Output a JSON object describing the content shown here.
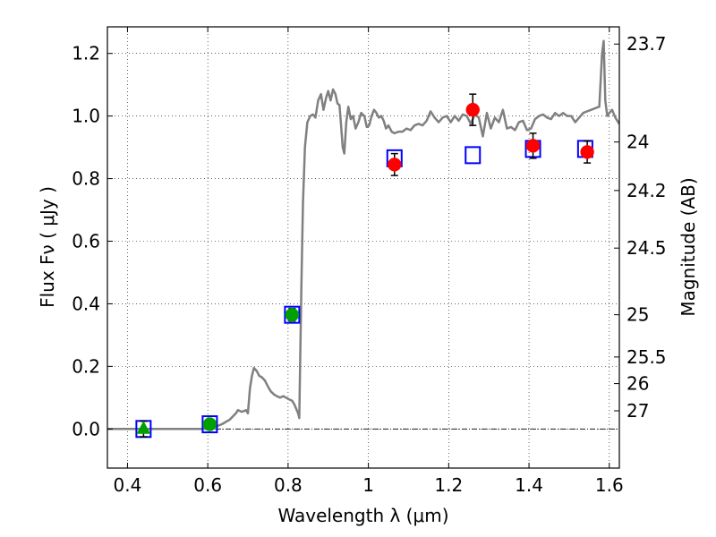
{
  "chart_data": {
    "type": "scatter",
    "xlabel": "Wavelength  λ (μm)",
    "ylabel": "Flux  Fν  ( μJy )",
    "ylabel_right": "Magnitude (AB)",
    "xlim": [
      0.35,
      1.625
    ],
    "ylim": [
      -0.125,
      1.285
    ],
    "grid": true,
    "x_ticks": [
      {
        "value": 0.4,
        "label": "0.4"
      },
      {
        "value": 0.6,
        "label": "0.6"
      },
      {
        "value": 0.8,
        "label": "0.8"
      },
      {
        "value": 1.0,
        "label": "1"
      },
      {
        "value": 1.2,
        "label": "1.2"
      },
      {
        "value": 1.4,
        "label": "1.4"
      },
      {
        "value": 1.6,
        "label": "1.6"
      }
    ],
    "y_ticks": [
      {
        "value": 0.0,
        "label": "0.0"
      },
      {
        "value": 0.2,
        "label": "0.2"
      },
      {
        "value": 0.4,
        "label": "0.4"
      },
      {
        "value": 0.6,
        "label": "0.6"
      },
      {
        "value": 0.8,
        "label": "0.8"
      },
      {
        "value": 1.0,
        "label": "1.0"
      },
      {
        "value": 1.2,
        "label": "1.2"
      }
    ],
    "right_ticks": [
      {
        "flux": 1.23,
        "label": "23.7"
      },
      {
        "flux": 0.917,
        "label": "24"
      },
      {
        "flux": 0.762,
        "label": "24.2"
      },
      {
        "flux": 0.578,
        "label": "24.5"
      },
      {
        "flux": 0.365,
        "label": "25"
      },
      {
        "flux": 0.23,
        "label": "25.5"
      },
      {
        "flux": 0.145,
        "label": "26"
      },
      {
        "flux": 0.058,
        "label": "27"
      }
    ],
    "series": [
      {
        "kind": "line",
        "color": "#808080",
        "points": [
          [
            0.35,
            0.0
          ],
          [
            0.6,
            0.0
          ],
          [
            0.615,
            0.005
          ],
          [
            0.635,
            0.015
          ],
          [
            0.655,
            0.03
          ],
          [
            0.67,
            0.05
          ],
          [
            0.675,
            0.06
          ],
          [
            0.685,
            0.055
          ],
          [
            0.695,
            0.06
          ],
          [
            0.7,
            0.05
          ],
          [
            0.705,
            0.13
          ],
          [
            0.71,
            0.17
          ],
          [
            0.715,
            0.195
          ],
          [
            0.722,
            0.185
          ],
          [
            0.728,
            0.17
          ],
          [
            0.735,
            0.165
          ],
          [
            0.742,
            0.155
          ],
          [
            0.75,
            0.135
          ],
          [
            0.757,
            0.12
          ],
          [
            0.765,
            0.11
          ],
          [
            0.772,
            0.105
          ],
          [
            0.78,
            0.1
          ],
          [
            0.788,
            0.105
          ],
          [
            0.795,
            0.1
          ],
          [
            0.802,
            0.095
          ],
          [
            0.81,
            0.09
          ],
          [
            0.815,
            0.08
          ],
          [
            0.82,
            0.065
          ],
          [
            0.825,
            0.05
          ],
          [
            0.828,
            0.035
          ],
          [
            0.83,
            0.2
          ],
          [
            0.833,
            0.45
          ],
          [
            0.837,
            0.72
          ],
          [
            0.842,
            0.9
          ],
          [
            0.848,
            0.98
          ],
          [
            0.855,
            1.0
          ],
          [
            0.862,
            1.005
          ],
          [
            0.868,
            0.995
          ],
          [
            0.875,
            1.05
          ],
          [
            0.882,
            1.07
          ],
          [
            0.888,
            1.02
          ],
          [
            0.895,
            1.06
          ],
          [
            0.9,
            1.08
          ],
          [
            0.906,
            1.05
          ],
          [
            0.912,
            1.085
          ],
          [
            0.918,
            1.07
          ],
          [
            0.923,
            1.04
          ],
          [
            0.928,
            1.035
          ],
          [
            0.932,
            0.97
          ],
          [
            0.936,
            0.9
          ],
          [
            0.94,
            0.88
          ],
          [
            0.945,
            0.98
          ],
          [
            0.95,
            1.03
          ],
          [
            0.956,
            0.99
          ],
          [
            0.962,
            1.0
          ],
          [
            0.968,
            0.96
          ],
          [
            0.975,
            0.98
          ],
          [
            0.982,
            1.01
          ],
          [
            0.99,
            1.0
          ],
          [
            0.996,
            0.965
          ],
          [
            1.002,
            0.97
          ],
          [
            1.008,
            1.0
          ],
          [
            1.014,
            1.02
          ],
          [
            1.02,
            1.01
          ],
          [
            1.026,
            0.995
          ],
          [
            1.032,
            1.0
          ],
          [
            1.038,
            0.985
          ],
          [
            1.044,
            0.96
          ],
          [
            1.05,
            0.97
          ],
          [
            1.058,
            0.95
          ],
          [
            1.065,
            0.945
          ],
          [
            1.075,
            0.95
          ],
          [
            1.085,
            0.95
          ],
          [
            1.095,
            0.96
          ],
          [
            1.105,
            0.955
          ],
          [
            1.115,
            0.97
          ],
          [
            1.125,
            0.975
          ],
          [
            1.135,
            0.97
          ],
          [
            1.145,
            0.985
          ],
          [
            1.155,
            1.015
          ],
          [
            1.165,
            0.995
          ],
          [
            1.175,
            0.98
          ],
          [
            1.185,
            0.995
          ],
          [
            1.195,
            1.0
          ],
          [
            1.205,
            0.98
          ],
          [
            1.215,
            1.0
          ],
          [
            1.225,
            0.985
          ],
          [
            1.235,
            1.005
          ],
          [
            1.245,
            1.0
          ],
          [
            1.255,
            0.975
          ],
          [
            1.265,
            1.005
          ],
          [
            1.275,
            0.995
          ],
          [
            1.285,
            0.935
          ],
          [
            1.295,
            1.01
          ],
          [
            1.305,
            0.96
          ],
          [
            1.315,
            0.995
          ],
          [
            1.325,
            0.98
          ],
          [
            1.335,
            1.02
          ],
          [
            1.345,
            0.96
          ],
          [
            1.355,
            0.965
          ],
          [
            1.365,
            0.955
          ],
          [
            1.375,
            0.98
          ],
          [
            1.385,
            0.985
          ],
          [
            1.395,
            0.955
          ],
          [
            1.405,
            0.96
          ],
          [
            1.415,
            0.99
          ],
          [
            1.425,
            1.0
          ],
          [
            1.435,
            1.005
          ],
          [
            1.445,
            0.995
          ],
          [
            1.455,
            0.99
          ],
          [
            1.465,
            1.01
          ],
          [
            1.475,
            1.0
          ],
          [
            1.485,
            1.01
          ],
          [
            1.495,
            1.0
          ],
          [
            1.505,
            1.0
          ],
          [
            1.515,
            0.98
          ],
          [
            1.525,
            0.995
          ],
          [
            1.535,
            1.01
          ],
          [
            1.545,
            1.015
          ],
          [
            1.555,
            1.02
          ],
          [
            1.565,
            1.025
          ],
          [
            1.575,
            1.03
          ],
          [
            1.582,
            1.2
          ],
          [
            1.586,
            1.24
          ],
          [
            1.59,
            1.05
          ],
          [
            1.595,
            1.0
          ],
          [
            1.6,
            1.01
          ],
          [
            1.607,
            1.02
          ],
          [
            1.615,
            0.995
          ],
          [
            1.625,
            0.975
          ]
        ]
      },
      {
        "kind": "open-square",
        "color": "#0000ff",
        "points": [
          [
            0.44,
            0.0
          ],
          [
            0.605,
            0.015
          ],
          [
            0.81,
            0.365
          ],
          [
            1.065,
            0.865
          ],
          [
            1.26,
            0.875
          ],
          [
            1.41,
            0.895
          ],
          [
            1.54,
            0.895
          ]
        ]
      },
      {
        "kind": "filled-circle",
        "color": "#ff0000",
        "points": [
          [
            1.065,
            0.845,
            0.035
          ],
          [
            1.26,
            1.02,
            0.05
          ],
          [
            1.41,
            0.905,
            0.04
          ],
          [
            1.545,
            0.885,
            0.035
          ]
        ]
      },
      {
        "kind": "filled-circle",
        "color": "#00a000",
        "points": [
          [
            0.605,
            0.015,
            0.015
          ],
          [
            0.81,
            0.365,
            0.02
          ]
        ]
      },
      {
        "kind": "triangle",
        "color": "#00a000",
        "points": [
          [
            0.44,
            0.0,
            0.025
          ]
        ]
      }
    ]
  }
}
